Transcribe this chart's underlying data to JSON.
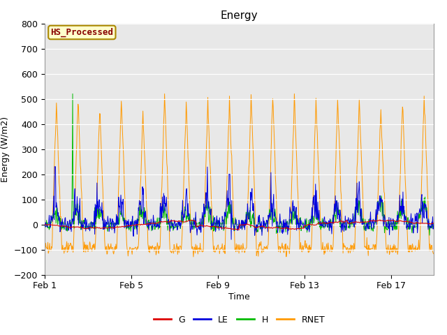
{
  "title": "Energy",
  "xlabel": "Time",
  "ylabel": "Energy (W/m2)",
  "ylim": [
    -200,
    800
  ],
  "yticks": [
    -200,
    -100,
    0,
    100,
    200,
    300,
    400,
    500,
    600,
    700,
    800
  ],
  "line_colors": {
    "G": "#dd0000",
    "LE": "#0000dd",
    "H": "#00bb00",
    "RNET": "#ff9900"
  },
  "annotation_text": "HS_Processed",
  "annotation_color": "#880000",
  "annotation_bg": "#ffffcc",
  "annotation_edge": "#aa8800",
  "fig_bg": "#ffffff",
  "plot_bg": "#e8e8e8",
  "grid_color": "#ffffff",
  "num_days": 18,
  "points_per_day": 48,
  "xtick_positions": [
    0,
    192,
    384,
    576,
    768
  ],
  "xtick_labels": [
    "Feb 1",
    "Feb 5",
    "Feb 9",
    "Feb 13",
    "Feb 17"
  ]
}
